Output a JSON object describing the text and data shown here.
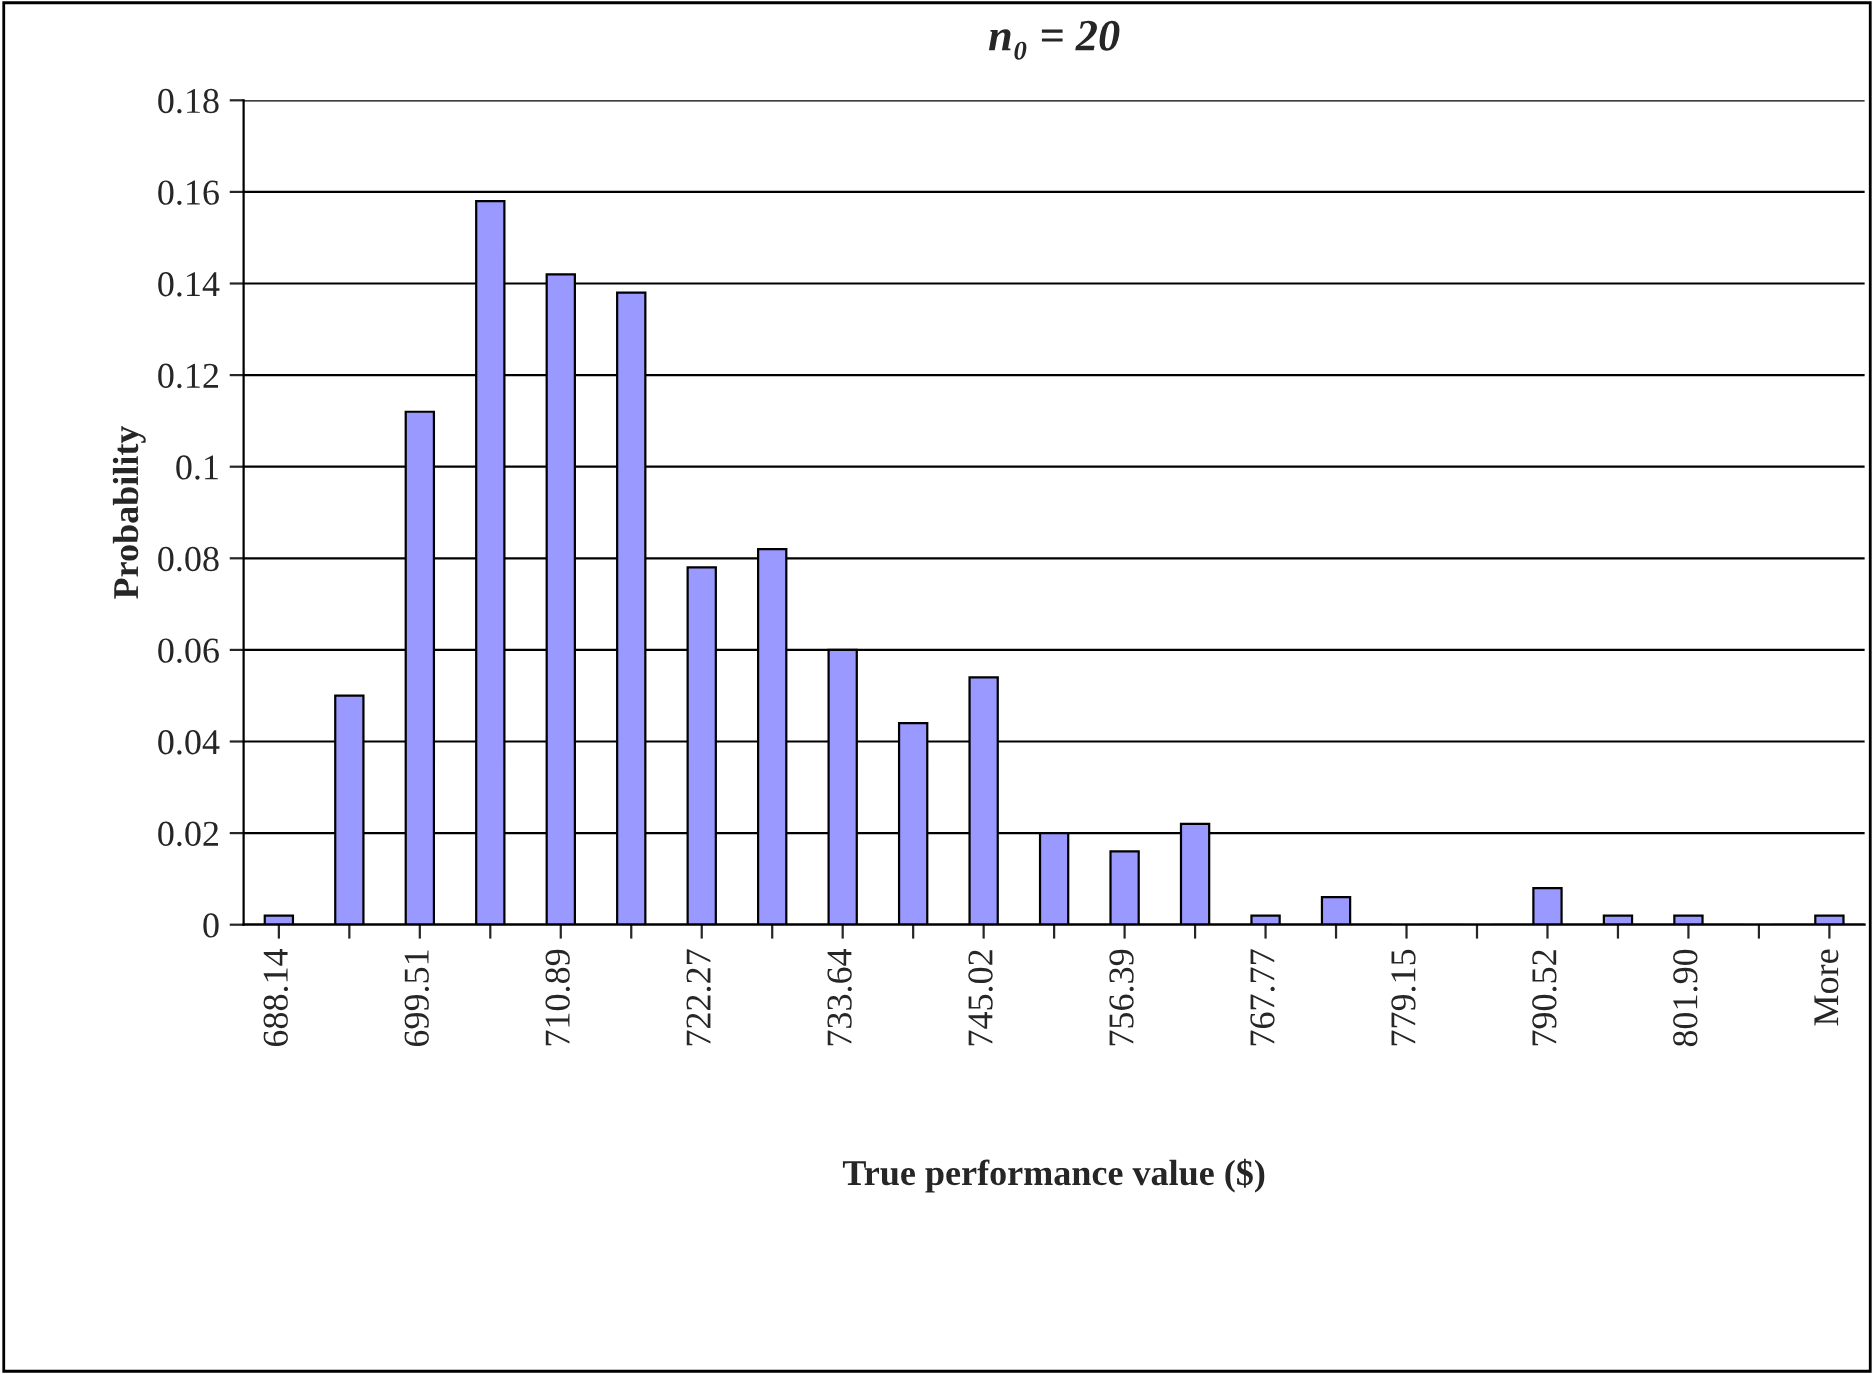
{
  "chart_data": {
    "type": "bar",
    "title": "n₀ = 20",
    "xlabel": "True performance value ($)",
    "ylabel": "Probability",
    "categories": [
      "688.14",
      null,
      "699.51",
      null,
      "710.89",
      null,
      "722.27",
      null,
      "733.64",
      null,
      "745.02",
      null,
      "756.39",
      null,
      "767.77",
      null,
      "779.15",
      null,
      "790.52",
      null,
      "801.90",
      null,
      "More"
    ],
    "values": [
      0.002,
      0.05,
      0.112,
      0.158,
      0.142,
      0.138,
      0.078,
      0.082,
      0.06,
      0.044,
      0.054,
      0.02,
      0.016,
      0.022,
      0.002,
      0.006,
      0,
      0,
      0.008,
      0.002,
      0.002,
      0,
      0.002
    ],
    "color": "#9999ff",
    "ylim": [
      0,
      0.18
    ],
    "yticks": [
      0,
      0.02,
      0.04,
      0.06,
      0.08,
      0.1,
      0.12,
      0.14,
      0.16,
      0.18
    ],
    "grid": "y",
    "legend": false
  }
}
